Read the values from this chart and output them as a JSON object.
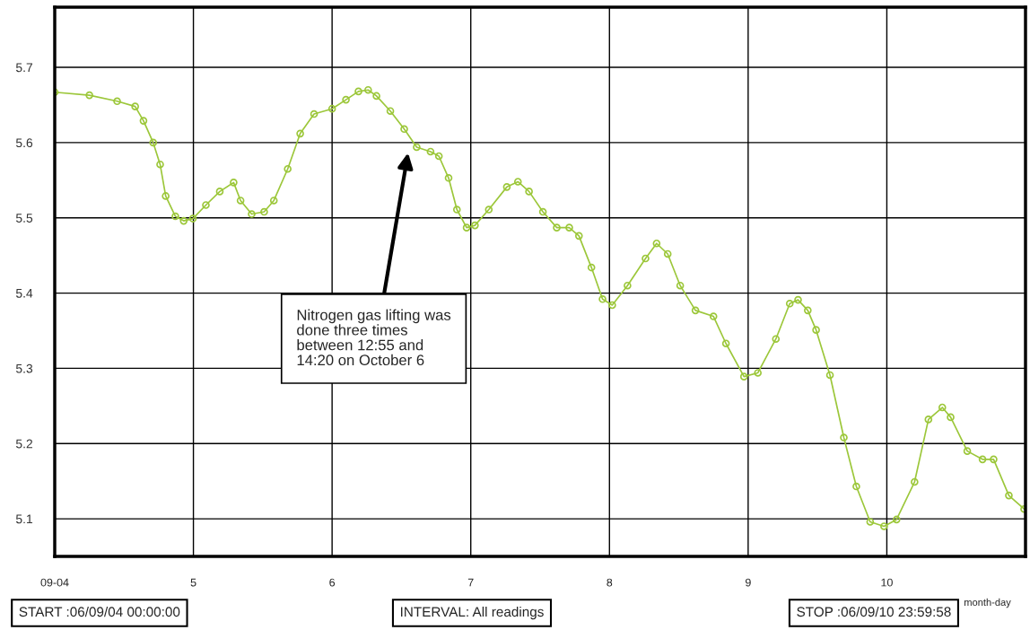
{
  "chart_data": {
    "type": "line",
    "xlabel": "month-day",
    "x": [
      4.0,
      4.25,
      4.45,
      4.58,
      4.64,
      4.71,
      4.76,
      4.8,
      4.87,
      4.93,
      4.996,
      5.09,
      5.19,
      5.29,
      5.34,
      5.42,
      5.51,
      5.58,
      5.68,
      5.77,
      5.87,
      6.0,
      6.1,
      6.19,
      6.26,
      6.32,
      6.42,
      6.52,
      6.61,
      6.71,
      6.77,
      6.84,
      6.9,
      6.97,
      7.03,
      7.13,
      7.26,
      7.34,
      7.42,
      7.52,
      7.62,
      7.71,
      7.78,
      7.87,
      7.95,
      8.02,
      8.13,
      8.26,
      8.34,
      8.42,
      8.51,
      8.62,
      8.75,
      8.84,
      8.97,
      9.07,
      9.2,
      9.3,
      9.36,
      9.43,
      9.49,
      9.59,
      9.69,
      9.78,
      9.88,
      9.98,
      10.07,
      10.2,
      10.3,
      10.4,
      10.46,
      10.58,
      10.69,
      10.77,
      10.88,
      10.99
    ],
    "series": [
      {
        "color": "#9cc73a",
        "values": [
          5.667,
          5.663,
          5.655,
          5.648,
          5.629,
          5.6,
          5.571,
          5.529,
          5.502,
          5.496,
          5.499,
          5.517,
          5.535,
          5.547,
          5.523,
          5.505,
          5.508,
          5.523,
          5.565,
          5.612,
          5.638,
          5.645,
          5.657,
          5.668,
          5.67,
          5.662,
          5.642,
          5.618,
          5.594,
          5.588,
          5.582,
          5.553,
          5.511,
          5.487,
          5.49,
          5.511,
          5.541,
          5.548,
          5.535,
          5.508,
          5.487,
          5.487,
          5.476,
          5.434,
          5.392,
          5.384,
          5.41,
          5.446,
          5.466,
          5.452,
          5.41,
          5.377,
          5.369,
          5.333,
          5.289,
          5.294,
          5.339,
          5.386,
          5.391,
          5.377,
          5.351,
          5.291,
          5.208,
          5.143,
          5.096,
          5.09,
          5.099,
          5.149,
          5.232,
          5.248,
          5.235,
          5.19,
          5.179,
          5.179,
          5.131,
          5.113
        ]
      }
    ],
    "marker": "circle",
    "grid": true,
    "legend": false,
    "xlim": [
      4,
      11
    ],
    "xticks": [
      {
        "value": 4,
        "label": "09-04"
      },
      5,
      6,
      7,
      8,
      9,
      10
    ],
    "ylim": [
      5.05,
      5.78
    ],
    "yticks": [
      5.1,
      5.2,
      5.3,
      5.4,
      5.5,
      5.6,
      5.7
    ],
    "annotations": [
      "Nitrogen gas lifting was\ndone three times\nbetween 12:55 and\n14:20 on October 6",
      "START :06/09/04 00:00:00",
      "INTERVAL: All readings",
      "STOP :06/09/10 23:59:58"
    ]
  }
}
